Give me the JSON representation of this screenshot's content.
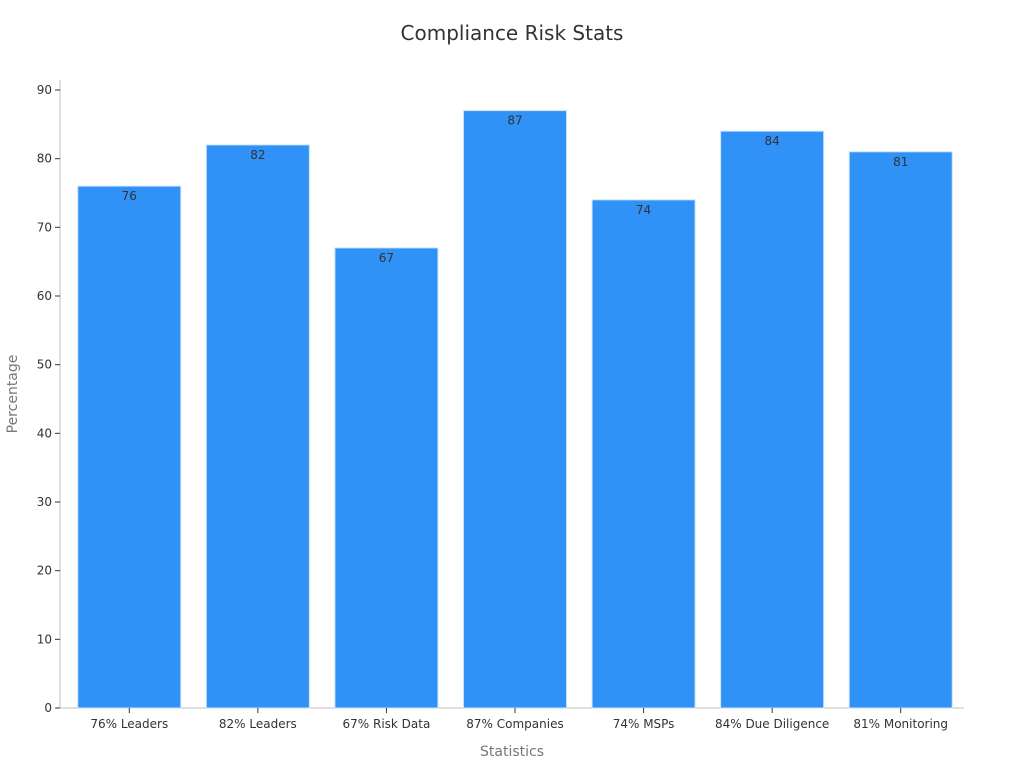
{
  "chart_data": {
    "type": "bar",
    "title": "Compliance Risk Stats",
    "xlabel": "Statistics",
    "ylabel": "Percentage",
    "categories": [
      "76% Leaders",
      "82% Leaders",
      "67% Risk Data",
      "87% Companies",
      "74% MSPs",
      "84% Due Diligence",
      "81% Monitoring"
    ],
    "values": [
      76,
      82,
      67,
      87,
      74,
      84,
      81
    ],
    "ylim": [
      0,
      90
    ],
    "yticks": [
      0,
      10,
      20,
      30,
      40,
      50,
      60,
      70,
      80,
      90
    ],
    "grid": false,
    "bar_color": "#3091f7",
    "show_data_labels": true
  }
}
